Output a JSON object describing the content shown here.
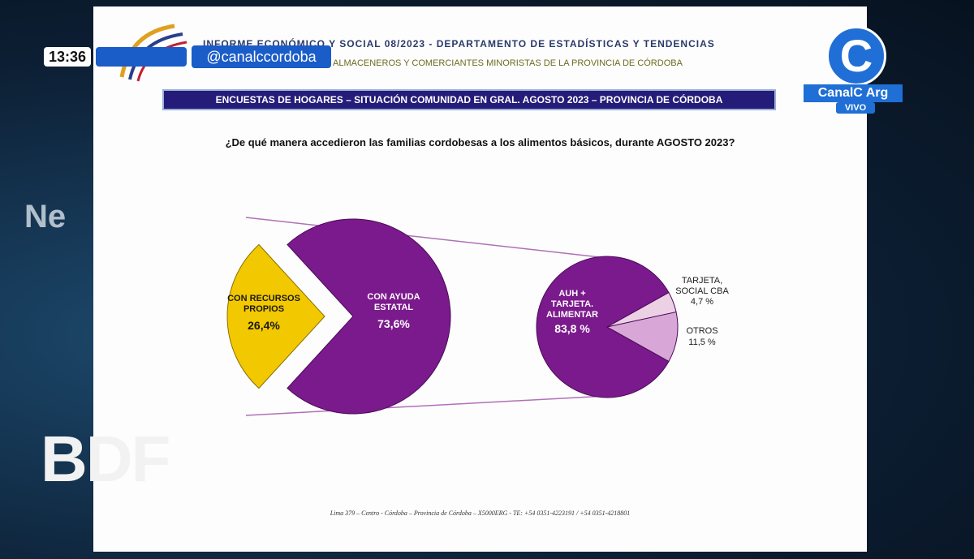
{
  "broadcast": {
    "time": "13:36",
    "handle": "@canalccordoba",
    "logo_letter": "C",
    "channel": "CanalC Arg",
    "live": "VIVO",
    "program": "BDF",
    "background_text": "Ne"
  },
  "slide": {
    "header_title": "INFORME ECONÓMICO Y SOCIAL 08/2023 - DEPARTAMENTO DE ESTADÍSTICAS Y TENDENCIAS",
    "header_subtitle": "ALMACENEROS Y COMERCIANTES MINORISTAS DE LA PROVINCIA DE CÓRDOBA",
    "banner": "ENCUESTAS DE HOGARES – SITUACIÓN COMUNIDAD EN GRAL.  AGOSTO 2023 – PROVINCIA DE CÓRDOBA",
    "footer": "Lima 379 – Centro - Córdoba – Provincia de Córdoba – X5000ERG - TE: +54 0351-4223191 / +54 0351-4218801"
  },
  "chart_data": {
    "type": "pie-of-pie",
    "title": "¿De qué manera accedieron las familias cordobesas a los alimentos básicos, durante AGOSTO 2023?",
    "categories": [
      "CON RECURSOS\nPROPIOS",
      "CON  AYUDA\nESTATAL"
    ],
    "values": [
      26.4,
      73.6
    ],
    "value_labels": [
      "26,4%",
      "73,6%"
    ],
    "colors": [
      "#f2c800",
      "#7b1a8c"
    ],
    "secondary": {
      "categories": [
        "AUH +\nTARJETA.\nALIMENTAR",
        "TARJETA,\nSOCIAL CBA",
        "OTROS"
      ],
      "values": [
        83.8,
        4.7,
        11.5
      ],
      "value_labels": [
        "83,8 %",
        "4,7 %",
        "11,5 %"
      ],
      "colors": [
        "#7b1a8c",
        "#ecd0e4",
        "#d9a6d8"
      ]
    }
  }
}
